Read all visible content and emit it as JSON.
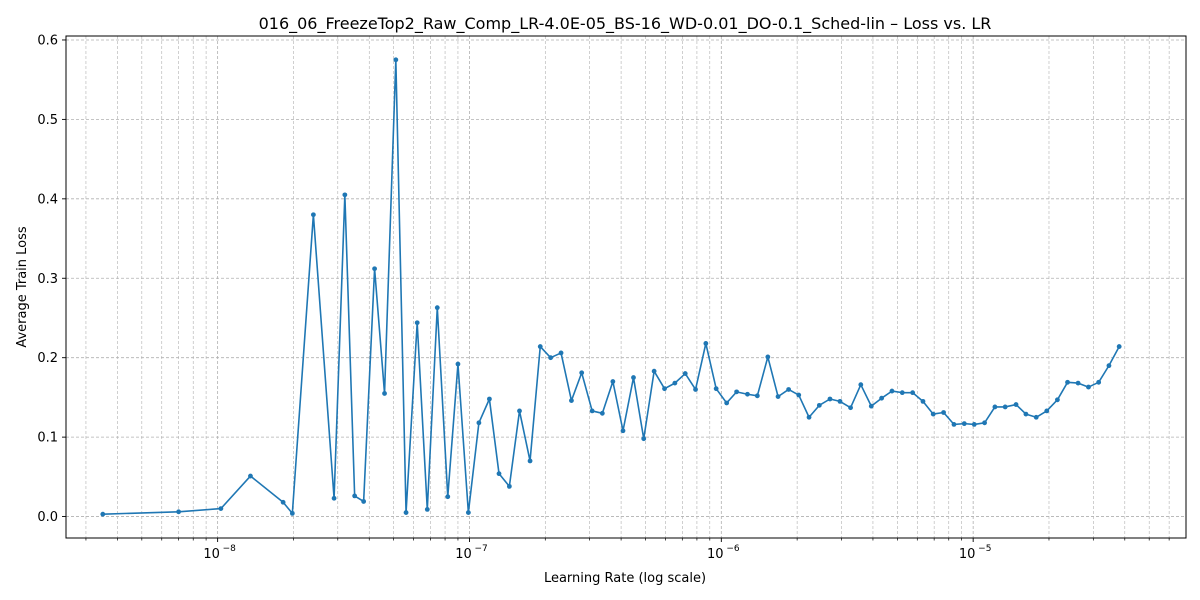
{
  "chart_data": {
    "type": "line",
    "title": "016_06_FreezeTop2_Raw_Comp_LR-4.0E-05_BS-16_WD-0.01_DO-0.1_Sched-lin – Loss vs. LR",
    "xlabel": "Learning Rate (log scale)",
    "ylabel": "Average Train Loss",
    "xscale": "log",
    "xlim": [
      2.5e-09,
      7e-05
    ],
    "ylim": [
      -0.027,
      0.605
    ],
    "grid": true,
    "color": "#1f77b4",
    "xticks": [
      {
        "value": 1e-08,
        "label": "10",
        "exp": "−8"
      },
      {
        "value": 1e-07,
        "label": "10",
        "exp": "−7"
      },
      {
        "value": 1e-06,
        "label": "10",
        "exp": "−6"
      },
      {
        "value": 1e-05,
        "label": "10",
        "exp": "−5"
      }
    ],
    "yticks": [
      {
        "value": 0.0,
        "label": "0.0"
      },
      {
        "value": 0.1,
        "label": "0.1"
      },
      {
        "value": 0.2,
        "label": "0.2"
      },
      {
        "value": 0.3,
        "label": "0.3"
      },
      {
        "value": 0.4,
        "label": "0.4"
      },
      {
        "value": 0.5,
        "label": "0.5"
      },
      {
        "value": 0.6,
        "label": "0.6"
      }
    ],
    "series": [
      {
        "x": [
          3.5e-09,
          7e-09,
          1.03e-08,
          1.35e-08,
          1.82e-08,
          1.98e-08,
          2.4e-08,
          2.9e-08,
          3.2e-08,
          3.5e-08,
          3.8e-08,
          4.2e-08,
          4.6e-08,
          5.1e-08,
          5.6e-08,
          6.2e-08,
          6.8e-08,
          7.45e-08,
          8.2e-08,
          9e-08,
          9.9e-08,
          1.09e-07,
          1.2e-07,
          1.31e-07,
          1.44e-07,
          1.58e-07,
          1.74e-07,
          1.91e-07,
          2.1e-07,
          2.31e-07,
          2.54e-07,
          2.79e-07,
          3.07e-07,
          3.37e-07,
          3.71e-07,
          4.07e-07,
          4.48e-07,
          4.92e-07,
          5.41e-07,
          5.95e-07,
          6.54e-07,
          7.19e-07,
          7.9e-07,
          8.68e-07,
          9.54e-07,
          1.05e-06,
          1.15e-06,
          1.27e-06,
          1.39e-06,
          1.53e-06,
          1.68e-06,
          1.85e-06,
          2.03e-06,
          2.23e-06,
          2.45e-06,
          2.7e-06,
          2.96e-06,
          3.26e-06,
          3.58e-06,
          3.94e-06,
          4.33e-06,
          4.76e-06,
          5.23e-06,
          5.75e-06,
          6.32e-06,
          6.94e-06,
          7.63e-06,
          8.39e-06,
          9.22e-06,
          1.01e-05,
          1.11e-05,
          1.22e-05,
          1.34e-05,
          1.48e-05,
          1.62e-05,
          1.78e-05,
          1.96e-05,
          2.16e-05,
          2.37e-05,
          2.61e-05,
          2.87e-05,
          3.15e-05,
          3.46e-05,
          3.8e-05
        ],
        "y": [
          0.003,
          0.006,
          0.01,
          0.051,
          0.018,
          0.004,
          0.38,
          0.023,
          0.405,
          0.026,
          0.019,
          0.312,
          0.155,
          0.575,
          0.005,
          0.244,
          0.009,
          0.263,
          0.025,
          0.192,
          0.005,
          0.118,
          0.148,
          0.054,
          0.038,
          0.133,
          0.07,
          0.214,
          0.2,
          0.206,
          0.146,
          0.181,
          0.133,
          0.13,
          0.17,
          0.108,
          0.175,
          0.098,
          0.183,
          0.161,
          0.168,
          0.18,
          0.16,
          0.218,
          0.161,
          0.143,
          0.157,
          0.154,
          0.152,
          0.201,
          0.151,
          0.16,
          0.153,
          0.125,
          0.14,
          0.148,
          0.145,
          0.137,
          0.166,
          0.139,
          0.149,
          0.158,
          0.156,
          0.156,
          0.145,
          0.129,
          0.131,
          0.116,
          0.117,
          0.116,
          0.118,
          0.138,
          0.138,
          0.141,
          0.129,
          0.125,
          0.133,
          0.147,
          0.169,
          0.168,
          0.163,
          0.169,
          0.19,
          0.214
        ]
      }
    ]
  }
}
